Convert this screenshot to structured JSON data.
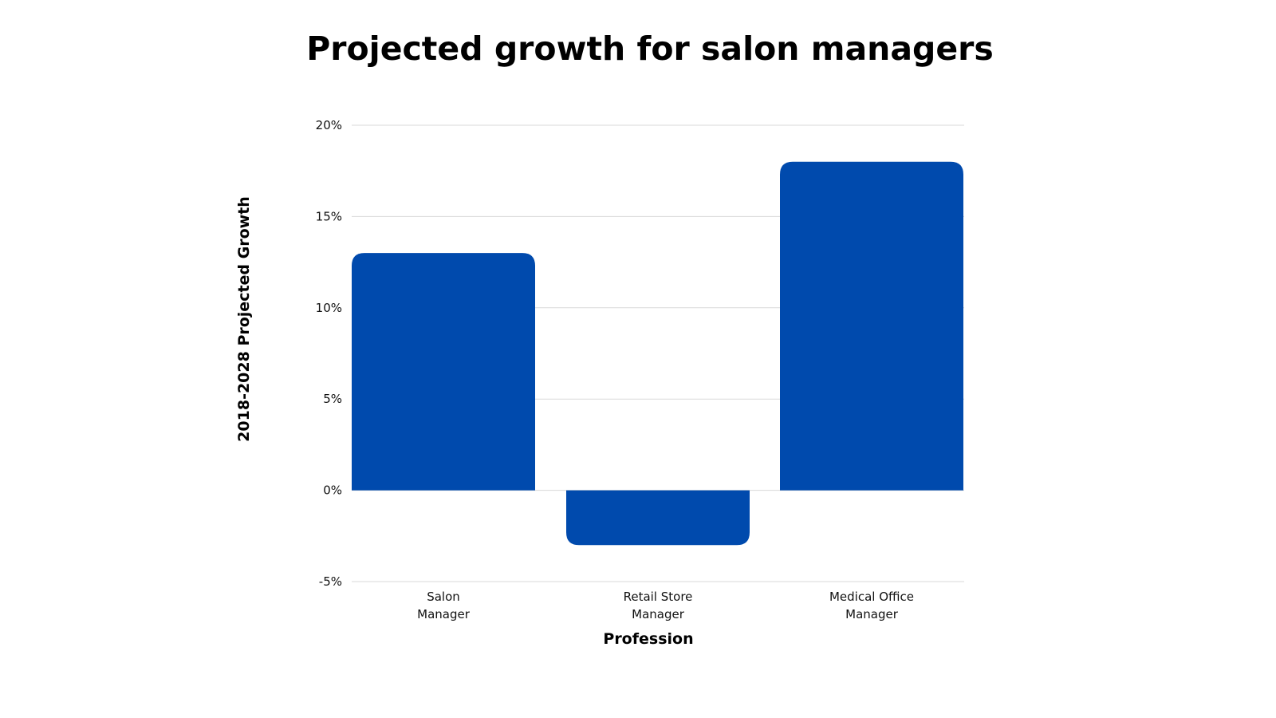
{
  "chart_data": {
    "type": "bar",
    "title": "Projected growth for salon managers",
    "xlabel": "Profession",
    "ylabel": "2018-2028 Projected Growth",
    "categories": [
      [
        "Salon",
        "Manager"
      ],
      [
        "Retail Store",
        "Manager"
      ],
      [
        "Medical Office",
        "Manager"
      ]
    ],
    "values": [
      13,
      -3,
      18
    ],
    "unit": "%",
    "ylim": [
      -5,
      20
    ],
    "yticks": [
      20,
      15,
      10,
      5,
      0,
      -5
    ],
    "ytick_labels": [
      "20%",
      "15%",
      "10%",
      "5%",
      "0%",
      "-5%"
    ],
    "grid": true,
    "legend": "none",
    "bar_color": "#004aad"
  }
}
